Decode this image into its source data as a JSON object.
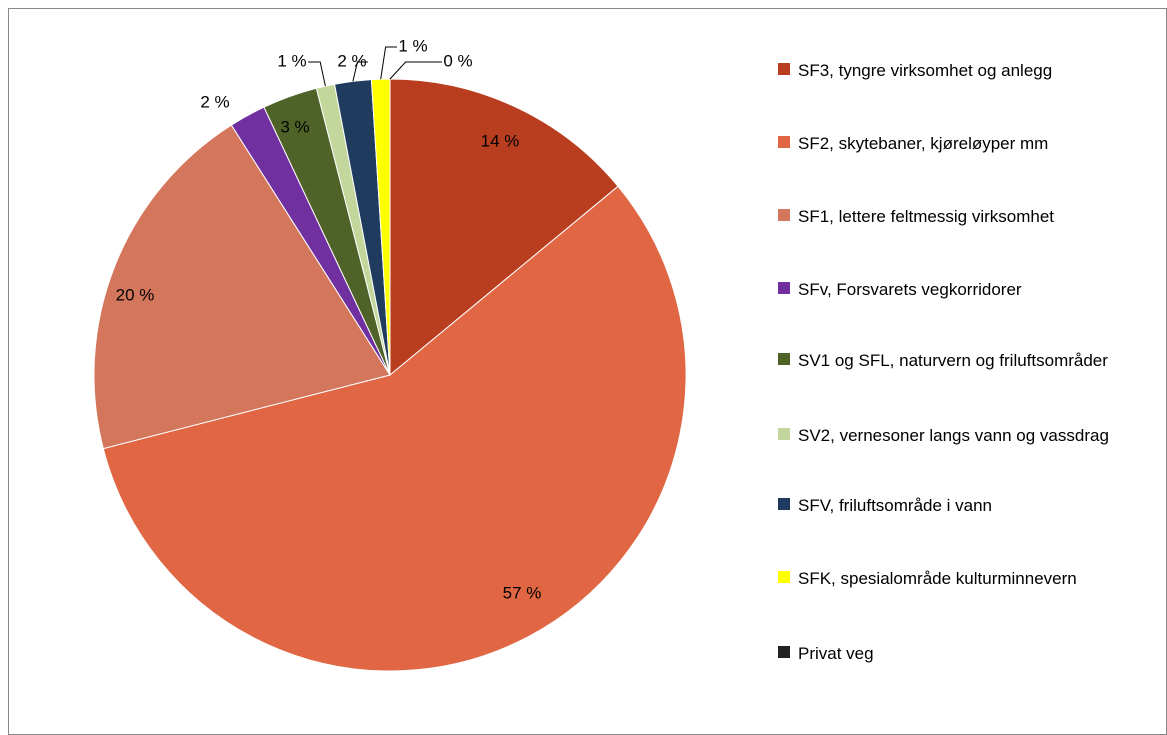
{
  "chart_data": {
    "type": "pie",
    "categories": [
      "SF3, tyngre virksomhet og anlegg",
      "SF2, skytebaner, kjøreløyper mm",
      "SF1, lettere feltmessig virksomhet",
      "SFv, Forsvarets vegkorridorer",
      "SV1 og SFL, naturvern og friluftsområder",
      "SV2, vernesoner langs vann og vassdrag",
      "SFV, friluftsområde i vann",
      "SFK, spesialområde kulturminnevern",
      "Privat veg"
    ],
    "values": [
      14,
      57,
      20,
      2,
      3,
      1,
      2,
      1,
      0
    ],
    "value_labels": [
      "14 %",
      "57 %",
      "20 %",
      "2 %",
      "3 %",
      "1 %",
      "2 %",
      "1 %",
      "0 %"
    ],
    "colors": [
      "#b93e1f",
      "#e06644",
      "#d4765c",
      "#7030a0",
      "#4f6228",
      "#c3d69b",
      "#1f3b5e",
      "#ffff00",
      "#222222"
    ],
    "legend": "right"
  }
}
